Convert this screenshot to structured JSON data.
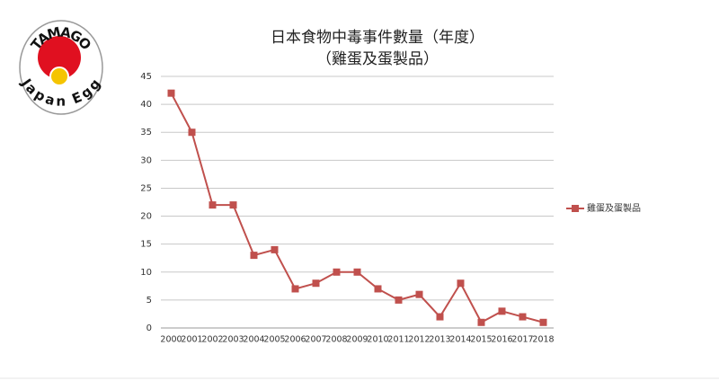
{
  "logo": {
    "top": "TAMAGO",
    "bottom": "Japan Egg"
  },
  "chart_data": {
    "type": "line",
    "title": "日本食物中毒事件數量（年度）",
    "subtitle": "（雞蛋及蛋製品）",
    "categories": [
      "2000",
      "2001",
      "2002",
      "2003",
      "2004",
      "2005",
      "2006",
      "2007",
      "2008",
      "2009",
      "2010",
      "2011",
      "2012",
      "2013",
      "2014",
      "2015",
      "2016",
      "2017",
      "2018"
    ],
    "series": [
      {
        "name": "雞蛋及蛋製品",
        "color": "#c0504d",
        "values": [
          42,
          35,
          22,
          22,
          13,
          14,
          7,
          8,
          10,
          10,
          7,
          5,
          6,
          2,
          8,
          1,
          3,
          2,
          1
        ]
      }
    ],
    "ylim": [
      0,
      45
    ],
    "yticks": [
      0,
      5,
      10,
      15,
      20,
      25,
      30,
      35,
      40,
      45
    ],
    "grid": true,
    "legend": "right"
  }
}
